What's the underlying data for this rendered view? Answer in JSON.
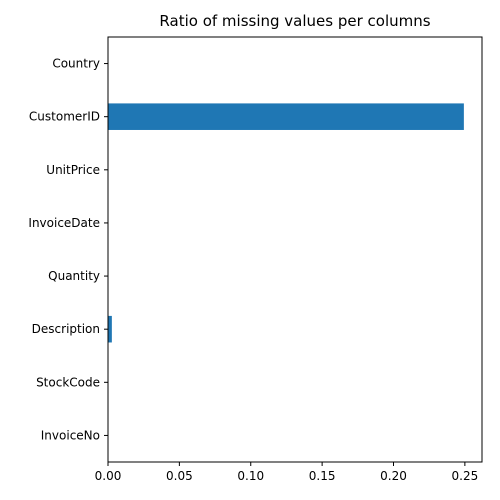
{
  "chart_data": {
    "type": "bar",
    "orientation": "horizontal",
    "title": "Ratio of missing values per columns",
    "xlabel": "",
    "ylabel": "",
    "categories": [
      "InvoiceNo",
      "StockCode",
      "Description",
      "Quantity",
      "InvoiceDate",
      "UnitPrice",
      "CustomerID",
      "Country"
    ],
    "values": [
      0.0,
      0.0,
      0.0027,
      0.0,
      0.0,
      0.0,
      0.2493,
      0.0
    ],
    "xlim": [
      0.0,
      0.262
    ],
    "xticks": [
      0.0,
      0.05,
      0.1,
      0.15,
      0.2,
      0.25
    ],
    "xtick_labels": [
      "0.00",
      "0.05",
      "0.10",
      "0.15",
      "0.20",
      "0.25"
    ],
    "bar_color": "#1f77b4",
    "grid": false,
    "legend": "none"
  }
}
